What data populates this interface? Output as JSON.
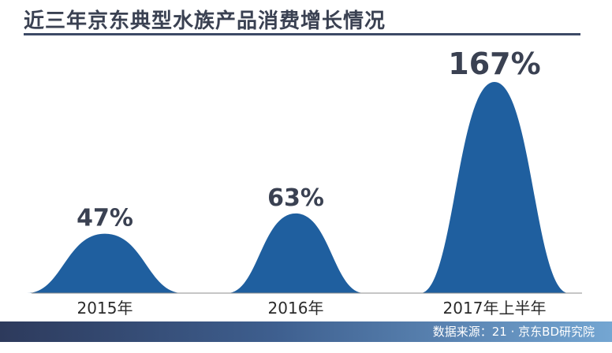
{
  "title": "近三年京东典型水族产品消费增长情况",
  "source": "数据来源：21 · 京东BD研究院",
  "colors": {
    "bar": "#1f5f9f",
    "title_text": "#3a4152",
    "title_rule": "#3d4a66",
    "footer_start": "#2d3a5c",
    "footer_end": "#74a6d2"
  },
  "chart_data": {
    "type": "bar",
    "shape": "bell",
    "title": "近三年京东典型水族产品消费增长情况",
    "categories": [
      "2015年",
      "2016年",
      "2017年上半年"
    ],
    "values": [
      47,
      63,
      167
    ],
    "value_labels": [
      "47%",
      "63%",
      "167%"
    ],
    "unit": "%",
    "grid": false,
    "legend": "none"
  }
}
